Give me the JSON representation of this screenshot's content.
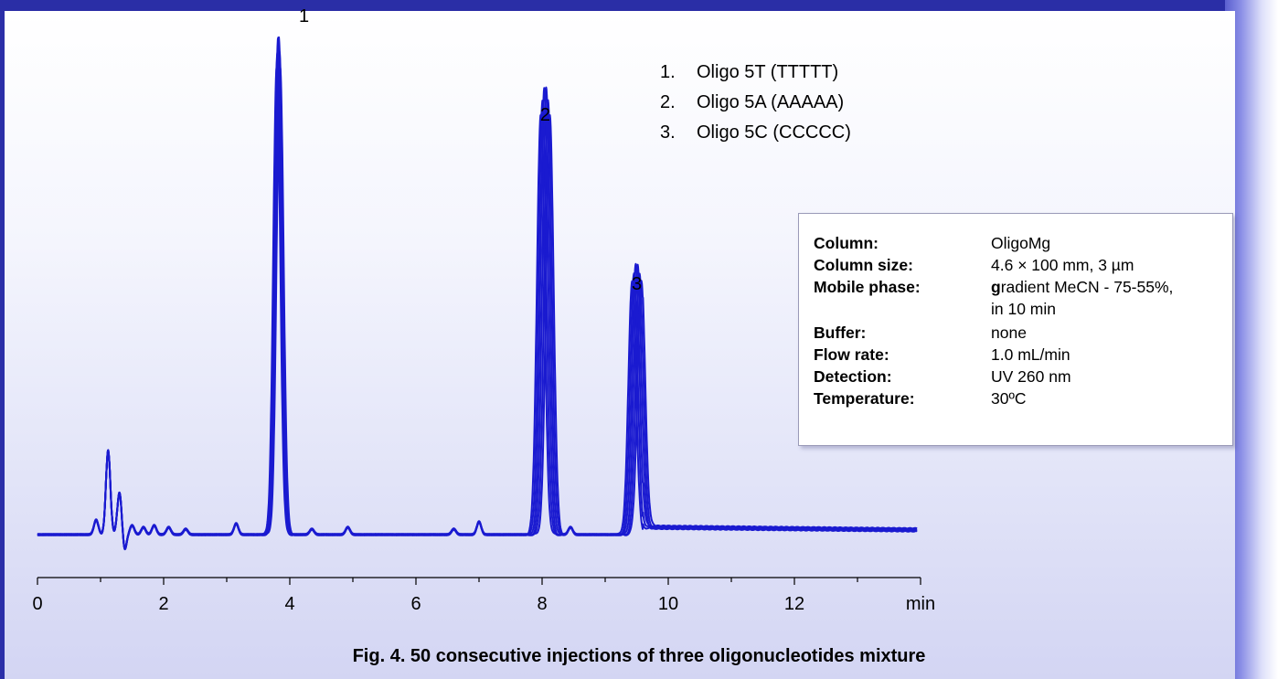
{
  "chart_data": {
    "type": "line",
    "xlabel": "min",
    "xlim": [
      0,
      13.5
    ],
    "x_ticks": [
      "0",
      "2",
      "4",
      "6",
      "8",
      "10",
      "12"
    ],
    "series_color": "#1a1ad0",
    "overlay_traces": 6,
    "peaks": [
      {
        "label": "1",
        "x": 3.82,
        "height": 553
      },
      {
        "label": "2",
        "x": 8.05,
        "height": 497
      },
      {
        "label": "3",
        "x": 9.5,
        "height": 300
      }
    ],
    "minor_peaks": [
      {
        "x": 0.93,
        "height": 16
      },
      {
        "x": 1.12,
        "height": 92
      },
      {
        "x": 1.3,
        "height": 46
      },
      {
        "x": 1.5,
        "height": 10
      },
      {
        "x": 1.68,
        "height": 8
      },
      {
        "x": 1.85,
        "height": 10
      },
      {
        "x": 2.08,
        "height": 8
      },
      {
        "x": 2.35,
        "height": 6
      },
      {
        "x": 3.15,
        "height": 12
      },
      {
        "x": 4.35,
        "height": 6
      },
      {
        "x": 4.92,
        "height": 8
      },
      {
        "x": 6.6,
        "height": 6
      },
      {
        "x": 7.0,
        "height": 14
      },
      {
        "x": 8.45,
        "height": 8
      }
    ],
    "legend": [
      {
        "num": "1.",
        "text": "Oligo 5T (TTTTT)"
      },
      {
        "num": "2.",
        "text": "Oligo 5A (AAAAA)"
      },
      {
        "num": "3.",
        "text": "Oligo 5C (CCCCC)"
      }
    ]
  },
  "conditions": [
    {
      "key": "Column:",
      "value": "OligoMg"
    },
    {
      "key": "Column size:",
      "value": "4.6 × 100 mm, 3 µm"
    },
    {
      "key": "Mobile phase:",
      "value": "gradient  MeCN - 75-55%,",
      "value_bold": "g",
      "value_rest": "radient  MeCN - 75-55%,"
    },
    {
      "key": "",
      "value": "in 10 min"
    },
    {
      "key": "Buffer:",
      "value": "none"
    },
    {
      "key": "Flow rate:",
      "value": "1.0 mL/min"
    },
    {
      "key": "Detection:",
      "value": "UV 260 nm"
    },
    {
      "key": "Temperature:",
      "value": "30ºC"
    }
  ],
  "caption": "Fig. 4.   50 consecutive injections of three oligonucleotides mixture"
}
